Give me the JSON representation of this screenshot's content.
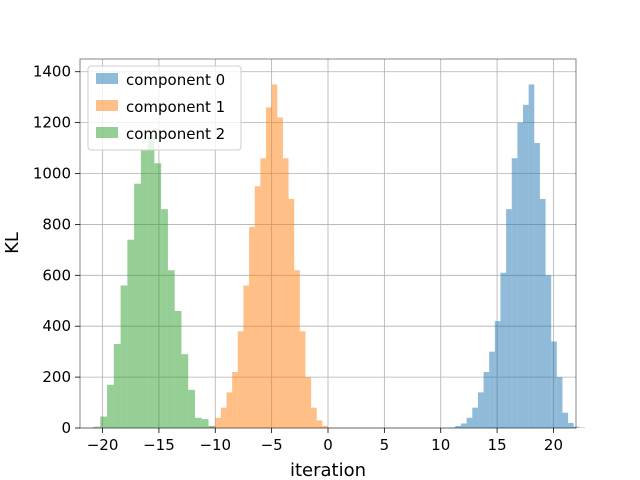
{
  "chart_data": {
    "type": "histogram",
    "title": "",
    "xlabel": "iteration",
    "ylabel": "KL",
    "xlim": [
      -22,
      22
    ],
    "ylim": [
      0,
      1450
    ],
    "xticks": [
      -20,
      -15,
      -10,
      -5,
      0,
      5,
      10,
      15,
      20
    ],
    "yticks": [
      0,
      200,
      400,
      600,
      800,
      1000,
      1200,
      1400
    ],
    "grid": true,
    "legend": "top-left",
    "series": [
      {
        "name": "component 0",
        "color": "#1f77b4",
        "opacity": 0.5,
        "bin_start": 10.8,
        "bin_width": 0.5,
        "counts": [
          2,
          8,
          18,
          40,
          80,
          140,
          220,
          300,
          420,
          610,
          860,
          1060,
          1200,
          1270,
          1350,
          1120,
          900,
          600,
          340,
          200,
          60,
          20,
          5,
          2
        ]
      },
      {
        "name": "component 1",
        "color": "#ff7f0e",
        "opacity": 0.5,
        "bin_start": -10.5,
        "bin_width": 0.5,
        "counts": [
          5,
          40,
          80,
          140,
          220,
          380,
          560,
          790,
          950,
          1060,
          1260,
          1350,
          1220,
          1060,
          900,
          620,
          380,
          200,
          80,
          30,
          8,
          2
        ]
      },
      {
        "name": "component 2",
        "color": "#2ca02c",
        "opacity": 0.5,
        "bin_start": -20.8,
        "bin_width": 0.6,
        "counts": [
          5,
          45,
          170,
          330,
          560,
          740,
          960,
          1090,
          1150,
          1040,
          860,
          620,
          460,
          290,
          150,
          40,
          35,
          8
        ]
      }
    ]
  }
}
